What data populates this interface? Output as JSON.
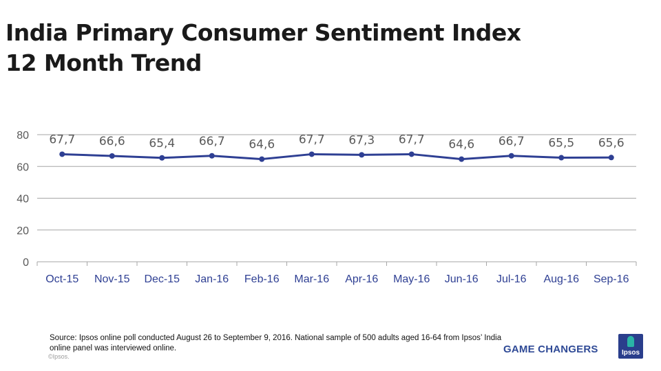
{
  "page": {
    "title_line1": "India Primary Consumer Sentiment Index",
    "title_line2": "12 Month Trend",
    "source_text": "Source: Ipsos online poll conducted August 26 to September 9, 2016. National sample of 500 adults aged 16-64 from Ipsos’ India online panel was interviewed online.",
    "copyright": "©Ipsos.",
    "brand_tagline": "GAME CHANGERS",
    "logo_text": "Ipsos"
  },
  "colors": {
    "series_line": "#2e3f93",
    "category_label": "#2e3f93",
    "value_label": "#595959",
    "gridline": "#a6a6a6",
    "axis_text": "#595959"
  },
  "chart_data": {
    "type": "line",
    "title": "India Primary Consumer Sentiment Index 12 Month Trend",
    "categories": [
      "Oct-15",
      "Nov-15",
      "Dec-15",
      "Jan-16",
      "Feb-16",
      "Mar-16",
      "Apr-16",
      "May-16",
      "Jun-16",
      "Jul-16",
      "Aug-16",
      "Sep-16"
    ],
    "series": [
      {
        "name": "Primary Consumer Sentiment Index",
        "values": [
          67.7,
          66.6,
          65.4,
          66.7,
          64.6,
          67.7,
          67.3,
          67.7,
          64.6,
          66.7,
          65.5,
          65.6
        ],
        "labels": [
          "67,7",
          "66,6",
          "65,4",
          "66,7",
          "64,6",
          "67,7",
          "67,3",
          "67,7",
          "64,6",
          "66,7",
          "65,5",
          "65,6"
        ]
      }
    ],
    "y_ticks": [
      "0",
      "20",
      "40",
      "60",
      "80"
    ],
    "ylim": [
      0,
      80
    ],
    "xlabel": "",
    "ylabel": "",
    "grid": true,
    "legend": "none"
  }
}
